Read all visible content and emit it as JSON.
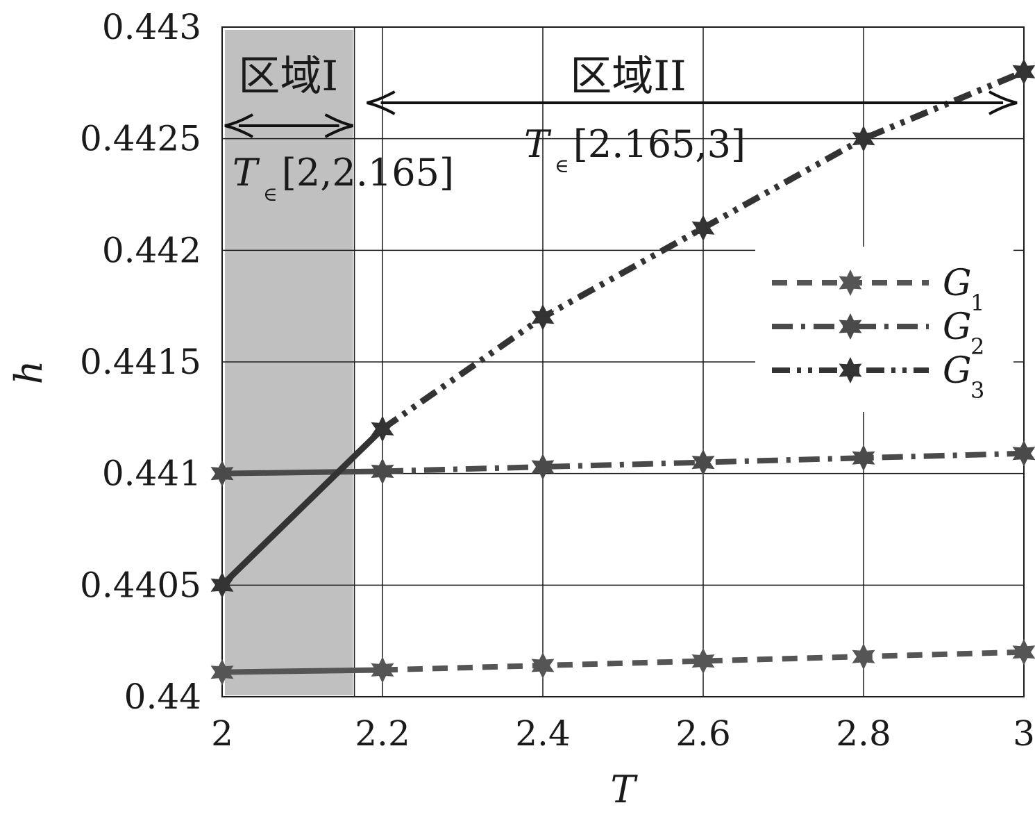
{
  "chart_data": {
    "type": "line",
    "xlabel": "T",
    "ylabel": "h",
    "xlim": [
      2,
      3
    ],
    "ylim": [
      0.44,
      0.443
    ],
    "x_ticks": [
      2,
      2.2,
      2.4,
      2.6,
      2.8,
      3
    ],
    "x_tick_labels": [
      "2",
      "2.2",
      "2.4",
      "2.6",
      "2.8",
      "3"
    ],
    "y_ticks": [
      0.44,
      0.4405,
      0.441,
      0.4415,
      0.442,
      0.4425,
      0.443
    ],
    "y_tick_labels": [
      "0.44",
      "0.4405",
      "0.441",
      "0.4415",
      "0.442",
      "0.4425",
      "0.443"
    ],
    "grid": true,
    "legend_position": "right",
    "series": [
      {
        "name": "G",
        "subscript": "1",
        "style": "dashed",
        "x": [
          2,
          2.2,
          2.4,
          2.6,
          2.8,
          3
        ],
        "values": [
          0.44011,
          0.44012,
          0.44014,
          0.44016,
          0.44018,
          0.4402
        ]
      },
      {
        "name": "G",
        "subscript": "2",
        "style": "dashdot",
        "x": [
          2,
          2.2,
          2.4,
          2.6,
          2.8,
          3
        ],
        "values": [
          0.441,
          0.44101,
          0.44103,
          0.44105,
          0.44107,
          0.44109
        ]
      },
      {
        "name": "G",
        "subscript": "3",
        "style": "dashdotdot",
        "x": [
          2,
          2.2,
          2.4,
          2.6,
          2.8,
          3
        ],
        "values": [
          0.4405,
          0.4412,
          0.4417,
          0.4421,
          0.4425,
          0.4428
        ]
      }
    ],
    "region_boundary": 2.165,
    "regions": [
      {
        "label": "区域I",
        "range_text": "[2,2.165]",
        "from": 2,
        "to": 2.165,
        "shaded": true
      },
      {
        "label": "区域II",
        "range_text": "[2.165,3]",
        "from": 2.165,
        "to": 3,
        "shaded": false
      }
    ],
    "range_prefix": "T",
    "range_symbol": "∈"
  }
}
